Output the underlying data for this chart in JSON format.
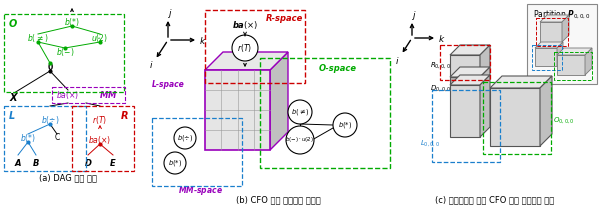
{
  "fig_width": 6.0,
  "fig_height": 2.15,
  "dpi": 100,
  "background": "#ffffff",
  "caption_a": "(a) DAG 질의 계획",
  "caption_b": "(b) CFO 융합 연산자의 시각화",
  "caption_c": "(c) 분산처리를 위한 CFO 융합 연산자의 분할",
  "green": "#00aa00",
  "blue": "#1a7fcc",
  "red": "#cc0000",
  "purple": "#9900bb",
  "gray_face": "#d8d8d8",
  "gray_top": "#e8e8e8",
  "gray_right": "#c0c0c0"
}
